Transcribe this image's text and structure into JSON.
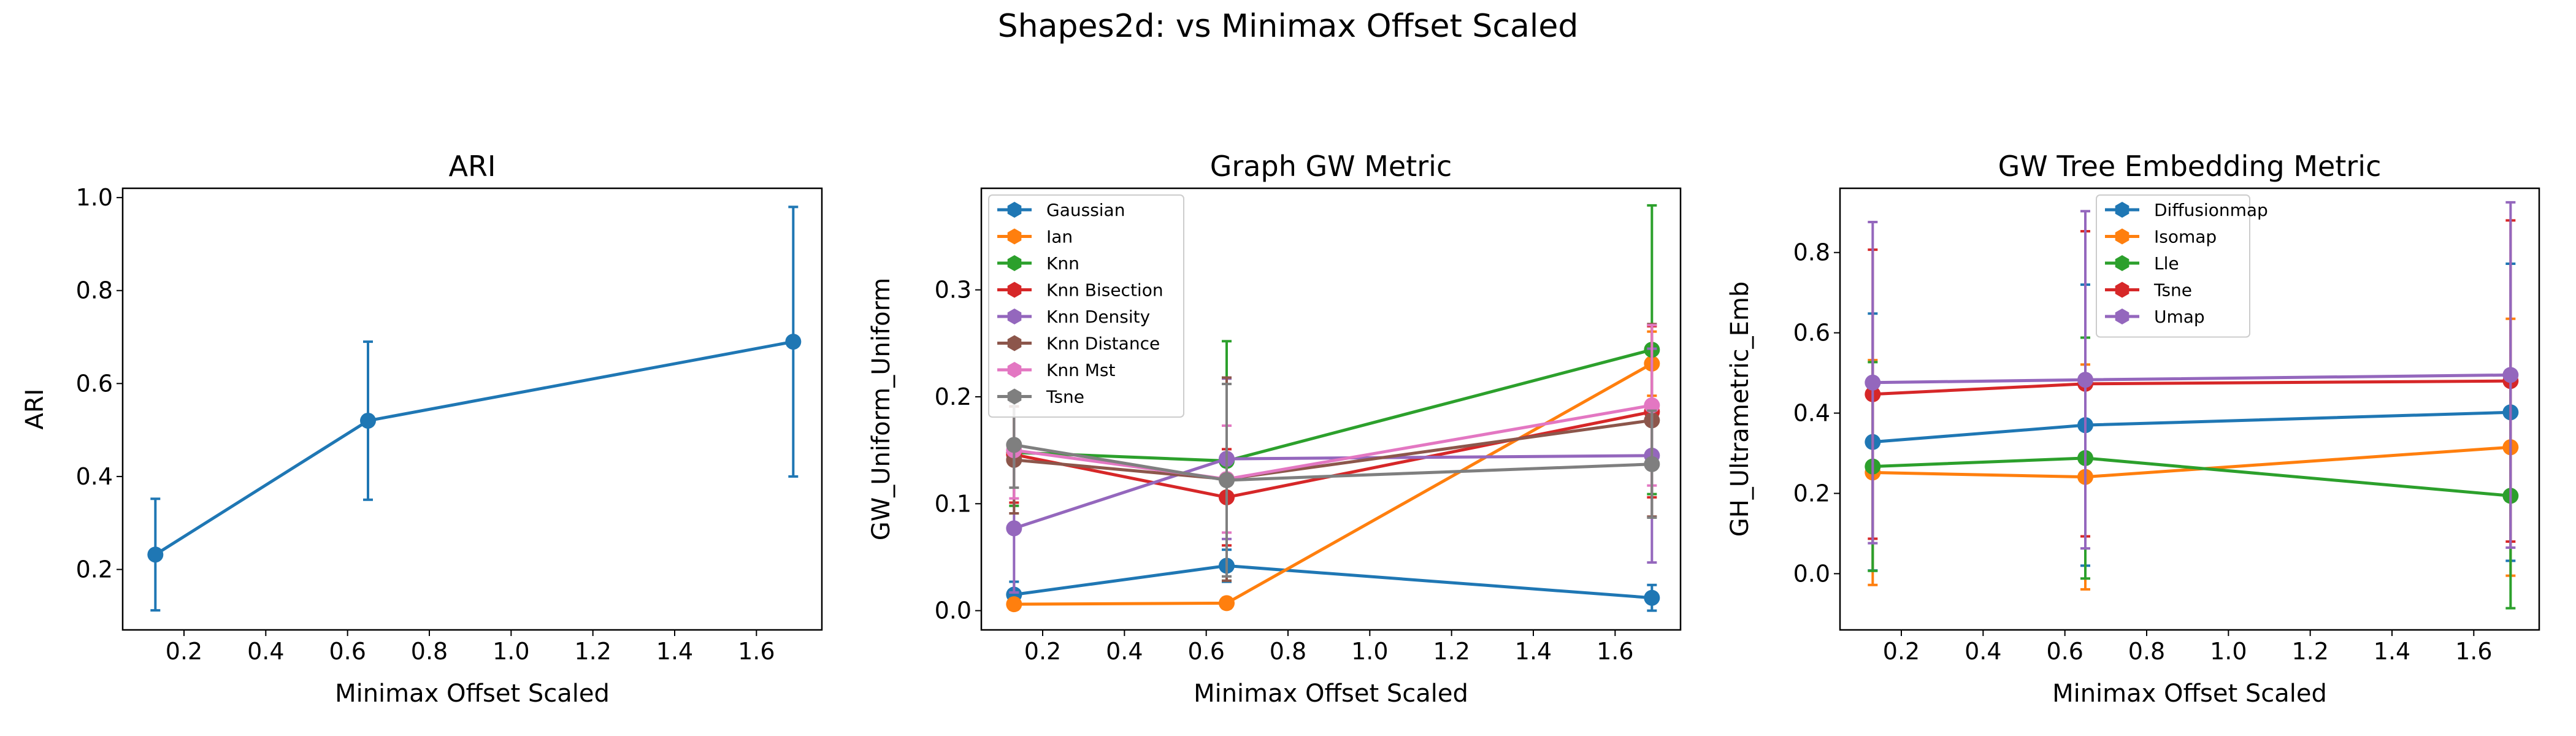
{
  "figure": {
    "suptitle": "Shapes2d: vs Minimax Offset Scaled"
  },
  "chart_data": [
    {
      "type": "line",
      "title": "ARI",
      "xlabel": "Minimax Offset Scaled",
      "ylabel": "ARI",
      "xlim": [
        0.05,
        1.76
      ],
      "ylim": [
        0.07,
        1.02
      ],
      "xticks": [
        0.2,
        0.4,
        0.6,
        0.8,
        1.0,
        1.2,
        1.4,
        1.6
      ],
      "yticks": [
        0.2,
        0.4,
        0.6,
        0.8,
        1.0
      ],
      "x": [
        0.13,
        0.65,
        1.69
      ],
      "legend": null,
      "series": [
        {
          "color": "#1f77b4",
          "values": [
            0.232,
            0.52,
            0.69
          ],
          "errors": [
            0.12,
            0.17,
            0.29
          ]
        }
      ]
    },
    {
      "type": "line",
      "title": "Graph GW Metric",
      "xlabel": "Minimax Offset Scaled",
      "ylabel": "GW_Uniform_Uniform",
      "xlim": [
        0.05,
        1.76
      ],
      "ylim": [
        -0.018,
        0.395
      ],
      "xticks": [
        0.2,
        0.4,
        0.6,
        0.8,
        1.0,
        1.2,
        1.4,
        1.6
      ],
      "yticks": [
        0.0,
        0.1,
        0.2,
        0.3
      ],
      "x": [
        0.13,
        0.65,
        1.69
      ],
      "legend": "top-left",
      "series": [
        {
          "name": "Gaussian",
          "color": "#1f77b4",
          "values": [
            0.015,
            0.042,
            0.012
          ],
          "errors": [
            0.012,
            0.015,
            0.012
          ]
        },
        {
          "name": "Ian",
          "color": "#ff7f0e",
          "values": [
            0.006,
            0.007,
            0.231
          ],
          "errors": [
            0.005,
            0.005,
            0.03
          ]
        },
        {
          "name": "Knn",
          "color": "#2ca02c",
          "values": [
            0.148,
            0.14,
            0.244
          ],
          "errors": [
            0.05,
            0.112,
            0.135
          ]
        },
        {
          "name": "Knn Bisection",
          "color": "#d62728",
          "values": [
            0.146,
            0.106,
            0.186
          ],
          "errors": [
            0.045,
            0.045,
            0.08
          ]
        },
        {
          "name": "Knn Density",
          "color": "#9467bd",
          "values": [
            0.077,
            0.142,
            0.145
          ],
          "errors": [
            0.06,
            0.075,
            0.1
          ]
        },
        {
          "name": "Knn Distance",
          "color": "#8c564b",
          "values": [
            0.141,
            0.123,
            0.178
          ],
          "errors": [
            0.05,
            0.095,
            0.09
          ]
        },
        {
          "name": "Knn Mst",
          "color": "#e377c2",
          "values": [
            0.15,
            0.123,
            0.192
          ],
          "errors": [
            0.045,
            0.05,
            0.075
          ]
        },
        {
          "name": "Tsne",
          "color": "#7f7f7f",
          "values": [
            0.155,
            0.122,
            0.137
          ],
          "errors": [
            0.04,
            0.09,
            0.05
          ]
        }
      ]
    },
    {
      "type": "line",
      "title": "GW Tree Embedding Metric",
      "xlabel": "Minimax Offset Scaled",
      "ylabel": "GH_Ultrametric_Emb",
      "xlim": [
        0.05,
        1.76
      ],
      "ylim": [
        -0.14,
        0.96
      ],
      "xticks": [
        0.2,
        0.4,
        0.6,
        0.8,
        1.0,
        1.2,
        1.4,
        1.6
      ],
      "yticks": [
        0.0,
        0.2,
        0.4,
        0.6,
        0.8
      ],
      "x": [
        0.13,
        0.65,
        1.69
      ],
      "legend": "top-center",
      "series": [
        {
          "name": "Diffusionmap",
          "color": "#1f77b4",
          "values": [
            0.328,
            0.37,
            0.402
          ],
          "errors": [
            0.32,
            0.35,
            0.37
          ]
        },
        {
          "name": "Isomap",
          "color": "#ff7f0e",
          "values": [
            0.252,
            0.241,
            0.315
          ],
          "errors": [
            0.28,
            0.28,
            0.32
          ]
        },
        {
          "name": "Lle",
          "color": "#2ca02c",
          "values": [
            0.267,
            0.288,
            0.194
          ],
          "errors": [
            0.26,
            0.3,
            0.28
          ]
        },
        {
          "name": "Tsne",
          "color": "#d62728",
          "values": [
            0.447,
            0.473,
            0.48
          ],
          "errors": [
            0.36,
            0.38,
            0.4
          ]
        },
        {
          "name": "Umap",
          "color": "#9467bd",
          "values": [
            0.476,
            0.483,
            0.495
          ],
          "errors": [
            0.4,
            0.42,
            0.43
          ]
        }
      ]
    }
  ]
}
